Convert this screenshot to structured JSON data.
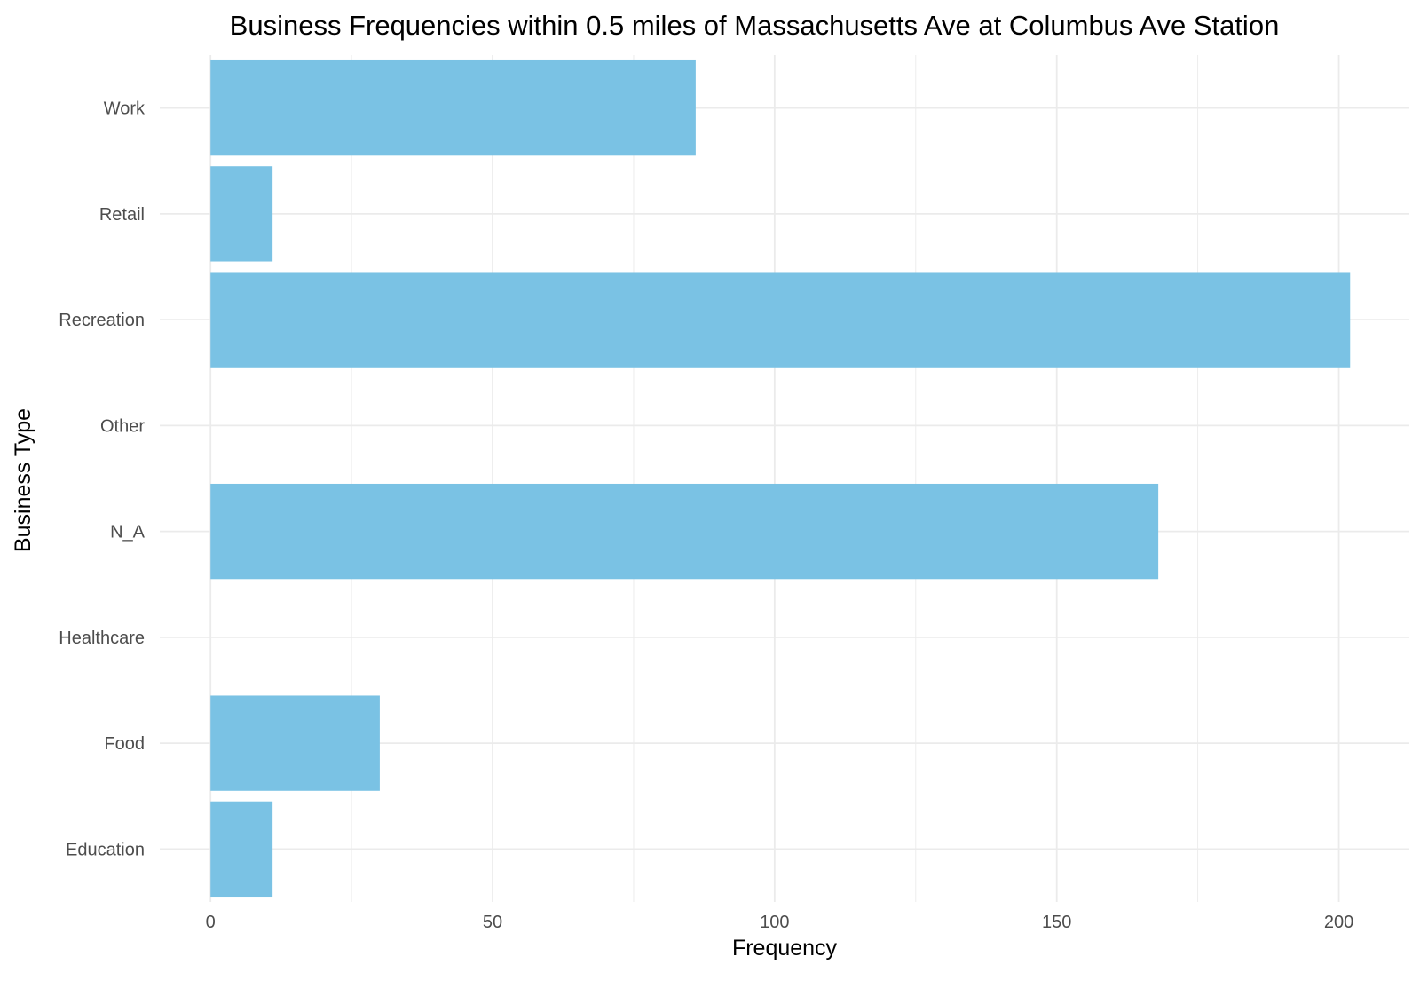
{
  "chart_data": {
    "type": "bar",
    "orientation": "horizontal",
    "title": "Business Frequencies within 0.5 miles of Massachusetts Ave at Columbus Ave Station",
    "xlabel": "Frequency",
    "ylabel": "Business Type",
    "categories": [
      "Education",
      "Food",
      "Healthcare",
      "N_A",
      "Other",
      "Recreation",
      "Retail",
      "Work"
    ],
    "values": [
      11,
      30,
      0,
      168,
      0,
      202,
      11,
      86
    ],
    "xlim": [
      -9,
      212.5
    ],
    "xticks": [
      0,
      50,
      100,
      150,
      200
    ],
    "grid": true,
    "legend": "none",
    "colors": {
      "bar": "#7ac2e4",
      "grid": "#ebebeb",
      "background": "#ffffff"
    }
  }
}
